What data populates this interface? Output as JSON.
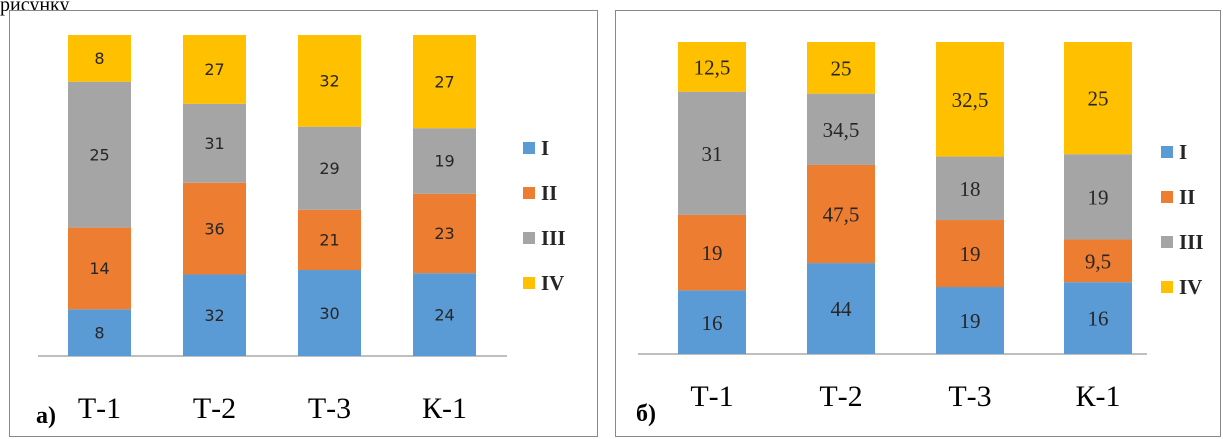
{
  "top_fragment": "рисунку",
  "chart_data": [
    {
      "type": "bar",
      "stacked": true,
      "panel_label": "а)",
      "categories": [
        "Т-1",
        "Т-2",
        "Т-3",
        "К-1"
      ],
      "series": [
        {
          "name": "I",
          "values": [
            "8",
            "32",
            "30",
            "24"
          ],
          "color": "#5B9BD5"
        },
        {
          "name": "II",
          "values": [
            "14",
            "36",
            "21",
            "23"
          ],
          "color": "#ED7D31"
        },
        {
          "name": "III",
          "values": [
            "25",
            "31",
            "29",
            "19"
          ],
          "color": "#A5A5A5"
        },
        {
          "name": "IV",
          "values": [
            "8",
            "27",
            "32",
            "27"
          ],
          "color": "#FFC000"
        }
      ],
      "legend": "right",
      "grid": false
    },
    {
      "type": "bar",
      "stacked": true,
      "panel_label": "б)",
      "categories": [
        "Т-1",
        "Т-2",
        "Т-3",
        "К-1"
      ],
      "series": [
        {
          "name": "I",
          "values": [
            "16",
            "44",
            "19",
            "16"
          ],
          "color": "#5B9BD5"
        },
        {
          "name": "II",
          "values": [
            "19",
            "47,5",
            "19",
            "9,5"
          ],
          "color": "#ED7D31"
        },
        {
          "name": "III",
          "values": [
            "31",
            "34,5",
            "18",
            "19"
          ],
          "color": "#A5A5A5"
        },
        {
          "name": "IV",
          "values": [
            "12,5",
            "25",
            "32,5",
            "25"
          ],
          "color": "#FFC000"
        }
      ],
      "legend": "right",
      "grid": false
    }
  ]
}
